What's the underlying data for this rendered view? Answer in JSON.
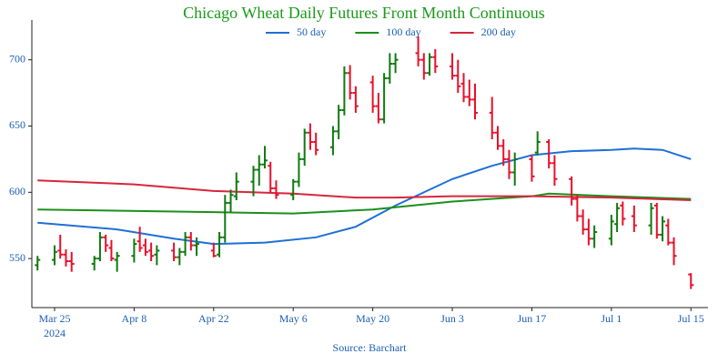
{
  "chart_data": {
    "type": "ohlc",
    "title": "Chicago Wheat Daily Futures Front Month Continuous",
    "source": "Source: Barchart",
    "x": [
      "2024-03-22",
      "2024-03-25",
      "2024-03-26",
      "2024-03-27",
      "2024-03-28",
      "2024-04-01",
      "2024-04-02",
      "2024-04-03",
      "2024-04-04",
      "2024-04-05",
      "2024-04-08",
      "2024-04-09",
      "2024-04-10",
      "2024-04-11",
      "2024-04-12",
      "2024-04-15",
      "2024-04-16",
      "2024-04-17",
      "2024-04-18",
      "2024-04-19",
      "2024-04-22",
      "2024-04-23",
      "2024-04-24",
      "2024-04-25",
      "2024-04-26",
      "2024-04-29",
      "2024-04-30",
      "2024-05-01",
      "2024-05-02",
      "2024-05-03",
      "2024-05-06",
      "2024-05-07",
      "2024-05-08",
      "2024-05-09",
      "2024-05-10",
      "2024-05-13",
      "2024-05-14",
      "2024-05-15",
      "2024-05-16",
      "2024-05-17",
      "2024-05-20",
      "2024-05-21",
      "2024-05-22",
      "2024-05-23",
      "2024-05-24",
      "2024-05-28",
      "2024-05-29",
      "2024-05-30",
      "2024-05-31",
      "2024-06-03",
      "2024-06-04",
      "2024-06-05",
      "2024-06-06",
      "2024-06-07",
      "2024-06-10",
      "2024-06-11",
      "2024-06-12",
      "2024-06-13",
      "2024-06-14",
      "2024-06-17",
      "2024-06-18",
      "2024-06-20",
      "2024-06-21",
      "2024-06-24",
      "2024-06-25",
      "2024-06-26",
      "2024-06-27",
      "2024-06-28",
      "2024-07-01",
      "2024-07-02",
      "2024-07-03",
      "2024-07-05",
      "2024-07-08",
      "2024-07-09",
      "2024-07-10",
      "2024-07-11",
      "2024-07-12",
      "2024-07-15"
    ],
    "open": [
      545,
      549,
      556,
      553,
      548,
      546,
      550,
      566,
      558,
      549,
      552,
      563,
      560,
      556,
      553,
      556,
      551,
      555,
      566,
      560,
      556,
      553,
      566,
      592,
      597,
      608,
      617,
      621,
      620,
      603,
      598,
      608,
      625,
      645,
      638,
      634,
      646,
      662,
      690,
      675,
      683,
      665,
      655,
      686,
      697,
      705,
      700,
      690,
      702,
      695,
      688,
      682,
      672,
      670,
      660,
      645,
      635,
      625,
      615,
      625,
      630,
      638,
      622,
      610,
      595,
      582,
      572,
      565,
      565,
      576,
      590,
      582,
      575,
      590,
      568,
      575,
      562,
      538
    ],
    "high": [
      552,
      560,
      568,
      557,
      555,
      552,
      570,
      568,
      564,
      555,
      565,
      574,
      565,
      562,
      560,
      562,
      558,
      570,
      570,
      566,
      562,
      570,
      598,
      602,
      615,
      620,
      628,
      635,
      623,
      609,
      610,
      630,
      648,
      652,
      645,
      650,
      666,
      695,
      696,
      680,
      688,
      675,
      690,
      705,
      705,
      718,
      705,
      705,
      708,
      705,
      700,
      690,
      685,
      682,
      672,
      650,
      640,
      632,
      630,
      628,
      646,
      640,
      628,
      612,
      598,
      587,
      580,
      575,
      583,
      592,
      593,
      590,
      592,
      592,
      582,
      580,
      566,
      539
    ],
    "low": [
      541,
      545,
      550,
      544,
      540,
      541,
      548,
      555,
      548,
      540,
      547,
      555,
      552,
      548,
      545,
      548,
      545,
      552,
      556,
      552,
      551,
      551,
      562,
      585,
      594,
      597,
      605,
      618,
      600,
      595,
      594,
      604,
      620,
      632,
      628,
      628,
      640,
      658,
      670,
      660,
      660,
      652,
      652,
      682,
      690,
      695,
      685,
      688,
      690,
      685,
      675,
      668,
      665,
      655,
      640,
      632,
      620,
      610,
      605,
      608,
      628,
      618,
      605,
      590,
      578,
      568,
      560,
      558,
      560,
      570,
      575,
      570,
      568,
      565,
      563,
      560,
      545,
      527
    ],
    "close": [
      549,
      555,
      553,
      548,
      546,
      550,
      566,
      560,
      550,
      552,
      561,
      558,
      555,
      552,
      556,
      551,
      555,
      566,
      560,
      561,
      552,
      566,
      592,
      598,
      608,
      617,
      621,
      624,
      603,
      598,
      608,
      625,
      645,
      638,
      632,
      646,
      662,
      690,
      675,
      665,
      665,
      655,
      686,
      697,
      700,
      700,
      690,
      702,
      695,
      688,
      680,
      672,
      670,
      660,
      645,
      635,
      625,
      615,
      625,
      612,
      638,
      622,
      610,
      595,
      582,
      572,
      565,
      570,
      578,
      588,
      580,
      575,
      588,
      568,
      578,
      562,
      552,
      530
    ],
    "up_color": "#0f7a0f",
    "down_color": "#e8102a",
    "series": [
      {
        "name": "50 day",
        "color": "#1f6fd6",
        "x": [
          "2024-03-22",
          "2024-04-05",
          "2024-04-15",
          "2024-04-22",
          "2024-05-01",
          "2024-05-10",
          "2024-05-17",
          "2024-05-24",
          "2024-06-03",
          "2024-06-10",
          "2024-06-17",
          "2024-06-24",
          "2024-07-01",
          "2024-07-05",
          "2024-07-10",
          "2024-07-15"
        ],
        "values": [
          577,
          572,
          565,
          561,
          562,
          566,
          574,
          590,
          610,
          620,
          628,
          631,
          632,
          633,
          632,
          625
        ]
      },
      {
        "name": "100 day",
        "color": "#1c8f1c",
        "x": [
          "2024-03-22",
          "2024-04-22",
          "2024-05-06",
          "2024-05-20",
          "2024-06-03",
          "2024-06-17",
          "2024-06-20",
          "2024-07-01",
          "2024-07-15"
        ],
        "values": [
          587,
          585,
          584,
          587,
          593,
          597,
          599,
          597,
          595
        ]
      },
      {
        "name": "200 day",
        "color": "#d6263b",
        "x": [
          "2024-03-22",
          "2024-04-08",
          "2024-04-22",
          "2024-05-06",
          "2024-05-17",
          "2024-05-24",
          "2024-06-03",
          "2024-06-17",
          "2024-07-01",
          "2024-07-15"
        ],
        "values": [
          609,
          606,
          601,
          599,
          596,
          596,
          597,
          597,
          596,
          594
        ]
      }
    ],
    "xlim": [
      "2024-03-21",
      "2024-07-18"
    ],
    "xticks": [
      {
        "value": "2024-03-25",
        "label": "Mar 25"
      },
      {
        "value": "2024-04-08",
        "label": "Apr 8"
      },
      {
        "value": "2024-04-22",
        "label": "Apr 22"
      },
      {
        "value": "2024-05-06",
        "label": "May 6"
      },
      {
        "value": "2024-05-20",
        "label": "May 20"
      },
      {
        "value": "2024-06-03",
        "label": "Jun 3"
      },
      {
        "value": "2024-06-17",
        "label": "Jun 17"
      },
      {
        "value": "2024-07-01",
        "label": "Jul 1"
      },
      {
        "value": "2024-07-15",
        "label": "Jul 15"
      }
    ],
    "x_year": "2024",
    "ylim": [
      513,
      730
    ],
    "yticks": [
      550,
      600,
      650,
      700
    ],
    "grid": false
  }
}
